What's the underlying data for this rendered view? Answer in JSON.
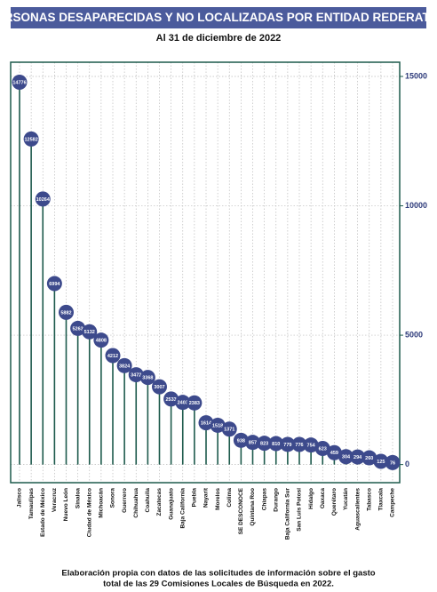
{
  "chart_data": {
    "type": "lollipop",
    "title": "PERSONAS DESAPARECIDAS Y NO LOCALIZADAS POR ENTIDAD REDERATIVA",
    "subtitle": "Al 31 de diciembre de 2022",
    "note": [
      "Elaboración propia con datos de las solicitudes de información sobre el gasto",
      "total de las 29 Comisiones Locales de Búsqueda en 2022."
    ],
    "categories": [
      "Jalisco",
      "Tamaulipas",
      "Estado de México",
      "Veracruz",
      "Nuevo León",
      "Sinaloa",
      "Ciudad de México",
      "Michoacán",
      "Sonora",
      "Guerrero",
      "Chihuahua",
      "Coahuila",
      "Zacatecas",
      "Guanajuato",
      "Baja California",
      "Puebla",
      "Nayarit",
      "Morelos",
      "Colima",
      "SE DESCONOCE",
      "Quintana Roo",
      "Chiapas",
      "Durango",
      "Baja California Sur",
      "San Luis Potosí",
      "Hidalgo",
      "Oaxaca",
      "Querétaro",
      "Yucatán",
      "Aguascalientes",
      "Tabasco",
      "Tlaxcala",
      "Campeche"
    ],
    "values": [
      14776,
      12582,
      10264,
      6994,
      5882,
      5263,
      5132,
      4808,
      4212,
      3824,
      3472,
      3368,
      3007,
      2533,
      2403,
      2383,
      1614,
      1518,
      1371,
      938,
      857,
      823,
      810,
      779,
      776,
      754,
      623,
      459,
      304,
      294,
      260,
      125,
      76
    ],
    "color": "#3d4a8c",
    "stem_color": "#1d5a4c",
    "ylim": [
      -700,
      15550
    ],
    "yticks": [
      0,
      5000,
      10000,
      15000
    ],
    "grid": true
  }
}
